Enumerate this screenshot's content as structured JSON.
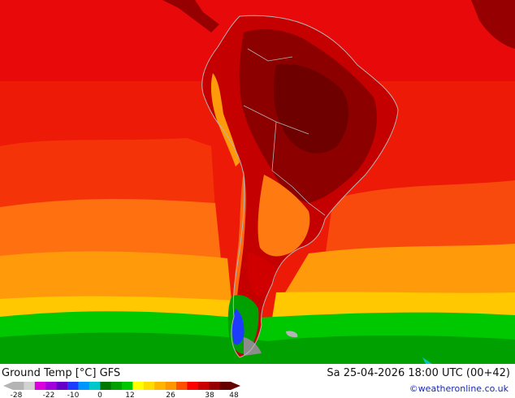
{
  "map": {
    "title": "Ground Temp [°C] GFS",
    "datetime": "Sa 25-04-2026 18:00 UTC (00+42)",
    "copyright": "©weatheronline.co.uk",
    "region": "South America"
  },
  "legend": {
    "ticks": [
      "-28",
      "-22",
      "-10",
      "0",
      "12",
      "26",
      "38",
      "48"
    ],
    "colors": [
      "#b4b4b4",
      "#d2d2d2",
      "#dc00dc",
      "#a000dc",
      "#6400c8",
      "#1e3cff",
      "#0096ff",
      "#00c8c8",
      "#007800",
      "#00a000",
      "#00c800",
      "#ffff00",
      "#ffdc00",
      "#ffb400",
      "#ff9600",
      "#ff5000",
      "#ff0000",
      "#c80000",
      "#960000",
      "#640000"
    ]
  },
  "palette": {
    "ocean_deep_red": "#e80a0a",
    "ocean_red": "#f42808",
    "ocean_orange": "#ff7a10",
    "ocean_amber": "#ffa008",
    "ocean_yellow": "#ffc800",
    "ocean_green": "#00c800",
    "ocean_dark_green": "#00a000",
    "land_dark": "#7a0000",
    "land_hot": "#b40000",
    "land_warm": "#d21a00",
    "mountains_cool": "#8c8c8c",
    "coast": "#b4b4b4"
  }
}
